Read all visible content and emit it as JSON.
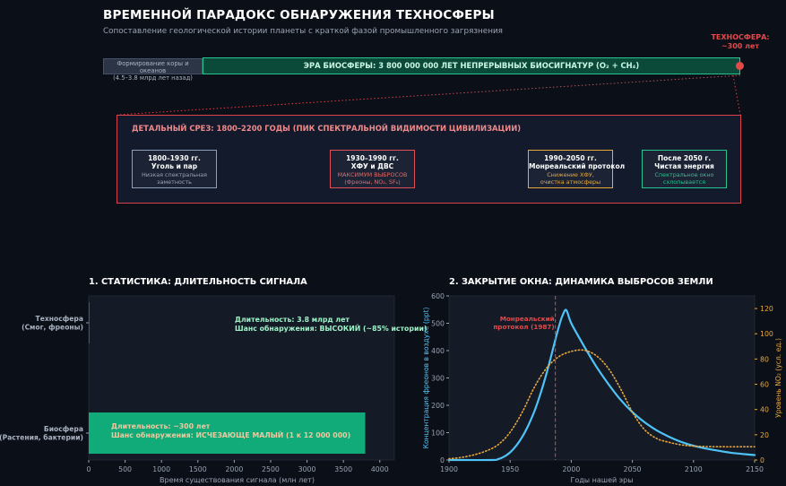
{
  "header": {
    "title": "ВРЕМЕННОЙ ПАРАДОКС ОБНАРУЖЕНИЯ ТЕХНОСФЕРЫ",
    "subtitle": "Сопоставление геологической истории планеты с краткой фазой промышленного загрязнения"
  },
  "timeline": {
    "techno_label_line1": "ТЕХНОСФЕРА:",
    "techno_label_line2": "~300 лет",
    "geo_line1": "Формирование коры и океанов",
    "geo_line2": "(4.5–3.8 млрд лет назад)",
    "bio_era_label": "ЭРА БИОСФЕРЫ: 3 800 000 000 ЛЕТ НЕПРЕРЫВНЫХ БИОСИГНАТУР (O₂ + CH₄)",
    "colors": {
      "geo": "#2b3545",
      "bio": "#0b4a39",
      "bio_border": "#27c490",
      "techno": "#e24a4a"
    }
  },
  "zoom": {
    "title": "ДЕТАЛЬНЫЙ СРЕЗ: 1800–2200 ГОДЫ (ПИК СПЕКТРАЛЬНОЙ ВИДИМОСТИ ЦИВИЛИЗАЦИИ)",
    "phases": [
      {
        "title1": "1800–1930 гг.",
        "title2": "Уголь и пар",
        "desc1": "Низкая спектральная",
        "desc2": "заметность"
      },
      {
        "title1": "1930–1990 гг.",
        "title2": "ХФУ и ДВС",
        "desc1": "МАКСИМУМ ВЫБРОСОВ",
        "desc2": "(Фреоны, NO₂, SF₆)"
      },
      {
        "title1": "1990–2050 гг.",
        "title2": "Монреальский протокол",
        "desc1": "Снижение ХФУ,",
        "desc2": "очистка атмосферы"
      },
      {
        "title1": "После 2050 г.",
        "title2": "Чистая энергия",
        "desc1": "Спектральное окно",
        "desc2": "схлопывается"
      }
    ]
  },
  "chart_data": [
    {
      "type": "bar",
      "title": "1. СТАТИСТИКА: ДЛИТЕЛЬНОСТЬ СИГНАЛА",
      "orientation": "horizontal",
      "xlabel": "Время существования сигнала (млн лет)",
      "ylabel": "",
      "xlim": [
        0,
        4200
      ],
      "xticks": [
        0,
        500,
        1000,
        1500,
        2000,
        2500,
        3000,
        3500,
        4000
      ],
      "grid": false,
      "categories": [
        {
          "line1": "Биосфера",
          "line2": "(Растения, бактерии)"
        },
        {
          "line1": "Техносфера",
          "line2": "(Смог, фреоны)"
        }
      ],
      "values": [
        3800,
        0.0003
      ],
      "bar_color": "#10ab78",
      "annotations": [
        {
          "line1": "Длительность: ~300 лет",
          "line2": "Шанс обнаружения: ИСЧЕЗАЮЩЕ МАЛЫЙ (1 к 12 000 000)",
          "color": "#f0c8a0"
        },
        {
          "line1": "Длительность: 3.8 млрд лет",
          "line2": "Шанс обнаружения: ВЫСОКИЙ (~85% истории)",
          "color": "#9ef2c8"
        }
      ]
    },
    {
      "type": "line",
      "title": "2. ЗАКРЫТИЕ ОКНА: ДИНАМИКА ВЫБРОСОВ ЗЕМЛИ",
      "xlabel": "Годы нашей эры",
      "ylabel": "Концентрация фреонов в воздухе (ppt)",
      "y2label": "Уровень NO₂ (усл. ед.)",
      "xlim": [
        1900,
        2150
      ],
      "ylim": [
        0,
        600
      ],
      "y2lim": [
        0,
        130
      ],
      "xticks": [
        1900,
        1950,
        2000,
        2050,
        2100,
        2150
      ],
      "yticks": [
        0,
        100,
        200,
        300,
        400,
        500,
        600
      ],
      "y2ticks": [
        0,
        20,
        40,
        60,
        80,
        100,
        120
      ],
      "grid": false,
      "series": [
        {
          "axis": "left",
          "color": "#4fc3f7",
          "style": "solid",
          "x": [
            1900,
            1935,
            1940,
            1945,
            1950,
            1955,
            1960,
            1965,
            1970,
            1975,
            1980,
            1985,
            1990,
            1993,
            1996,
            2000,
            2010,
            2020,
            2030,
            2040,
            2050,
            2060,
            2070,
            2080,
            2090,
            2100,
            2110,
            2120,
            2130,
            2140,
            2150
          ],
          "y": [
            0,
            0,
            3,
            12,
            28,
            52,
            85,
            128,
            180,
            245,
            320,
            405,
            490,
            530,
            548,
            500,
            420,
            345,
            280,
            222,
            175,
            138,
            108,
            85,
            66,
            52,
            42,
            34,
            27,
            22,
            18
          ]
        },
        {
          "axis": "right",
          "color": "#e8a83c",
          "style": "dotted",
          "x": [
            1900,
            1910,
            1920,
            1930,
            1940,
            1950,
            1960,
            1970,
            1980,
            1990,
            2000,
            2010,
            2020,
            2030,
            2040,
            2050,
            2060,
            2070,
            2080,
            2090,
            2100,
            2120,
            2150
          ],
          "y": [
            1,
            2,
            4,
            7,
            12,
            22,
            38,
            58,
            73,
            82,
            86,
            87,
            83,
            73,
            57,
            38,
            24,
            17,
            14,
            12,
            11,
            10.5,
            10.5
          ]
        }
      ],
      "annotations": [
        {
          "line1": "Монреальский",
          "line2": "протокол (1987)",
          "x": 1987,
          "color": "#e24a4a"
        }
      ]
    }
  ]
}
